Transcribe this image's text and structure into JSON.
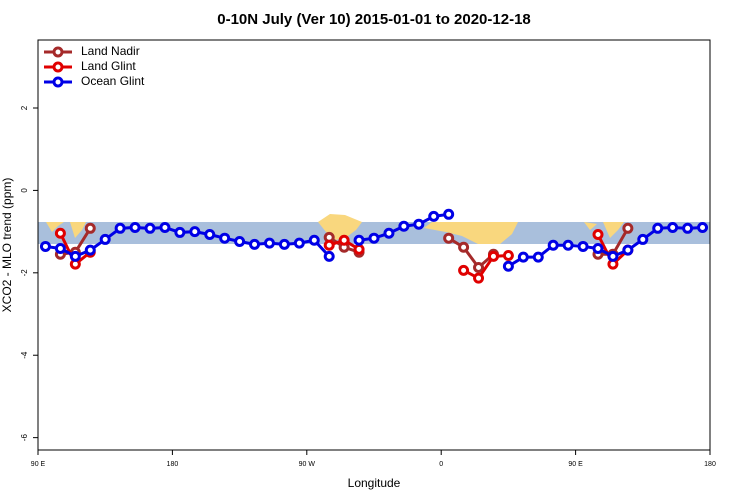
{
  "chart_data": {
    "type": "line",
    "title": "0-10N July (Ver 10)   2015-01-01 to 2020-12-18",
    "x_label": "Longitude",
    "y_label": "XCO2 - MLO trend (ppm)",
    "x": [
      95,
      105,
      115,
      125,
      135,
      145,
      155,
      165,
      175,
      185,
      195,
      205,
      215,
      225,
      235,
      245,
      255,
      265,
      275,
      285,
      295,
      305,
      315,
      325,
      335,
      345,
      355,
      365,
      375,
      385,
      395,
      405,
      415,
      425,
      435,
      445,
      455,
      465,
      475,
      485,
      495,
      505,
      515,
      525,
      535
    ],
    "series": [
      {
        "name": "Land Nadir",
        "color": "#a52a2a",
        "values": [
          null,
          -1.55,
          -1.5,
          -0.92,
          null,
          null,
          null,
          null,
          null,
          null,
          null,
          null,
          null,
          null,
          null,
          null,
          null,
          null,
          null,
          -1.14,
          -1.38,
          -1.5,
          null,
          null,
          null,
          null,
          null,
          -1.16,
          -1.38,
          -1.87,
          -1.55,
          null,
          null,
          null,
          null,
          null,
          null,
          -1.55,
          -1.55,
          -0.92,
          null,
          null,
          null,
          null,
          null
        ]
      },
      {
        "name": "Land Glint",
        "color": "#e00000",
        "values": [
          null,
          -1.04,
          -1.79,
          -1.5,
          null,
          null,
          null,
          null,
          null,
          null,
          null,
          null,
          null,
          null,
          null,
          null,
          null,
          null,
          null,
          -1.33,
          -1.21,
          -1.43,
          null,
          null,
          null,
          null,
          null,
          null,
          -1.94,
          -2.13,
          -1.6,
          -1.58,
          null,
          null,
          null,
          null,
          null,
          -1.07,
          -1.79,
          -1.45,
          null,
          null,
          null,
          null,
          null
        ]
      },
      {
        "name": "Ocean Glint",
        "color": "#0000e6",
        "values": [
          -1.36,
          -1.41,
          -1.6,
          -1.45,
          -1.19,
          -0.92,
          -0.9,
          -0.92,
          -0.9,
          -1.02,
          -1.0,
          -1.07,
          -1.16,
          -1.24,
          -1.31,
          -1.28,
          -1.31,
          -1.28,
          -1.21,
          -1.6,
          null,
          -1.21,
          -1.16,
          -1.04,
          -0.87,
          -0.82,
          -0.63,
          -0.58,
          null,
          null,
          null,
          -1.84,
          -1.62,
          -1.62,
          -1.33,
          -1.33,
          -1.36,
          -1.41,
          -1.6,
          -1.45,
          -1.19,
          -0.92,
          -0.9,
          -0.92,
          -0.9
        ]
      }
    ],
    "xlim": [
      90,
      540
    ],
    "xticks": [
      {
        "value": 90,
        "label": "90 E"
      },
      180,
      {
        "value": 270,
        "label": "90 W"
      },
      {
        "value": 360,
        "label": "0"
      },
      {
        "value": 450,
        "label": "90 E"
      },
      {
        "value": 540,
        "label": "180"
      }
    ],
    "ylim": [
      -6.3,
      3.65
    ],
    "yticks": [
      -6,
      -4,
      -2,
      0,
      2
    ],
    "legend": "top-left"
  }
}
